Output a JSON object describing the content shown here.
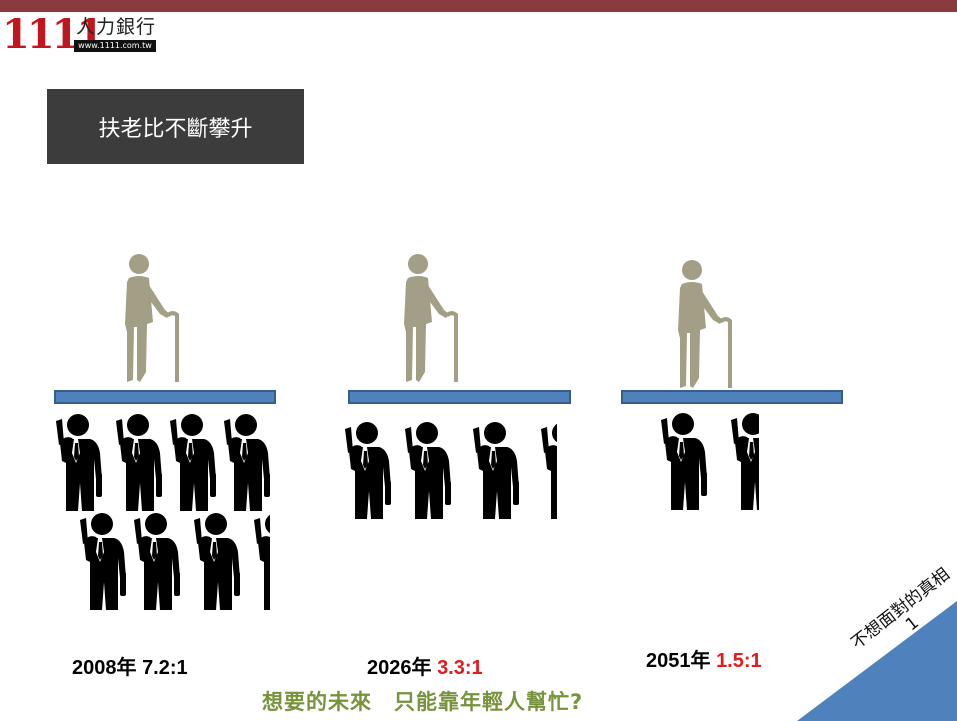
{
  "logo": {
    "number": "1111",
    "name": "人力銀行",
    "url": "www.1111.com.tw"
  },
  "title": "扶老比不斷攀升",
  "groups": [
    {
      "year": "2008年",
      "ratio": "7.2:1",
      "ratio_color": "#000000"
    },
    {
      "year": "2026年",
      "ratio": "3.3:1",
      "ratio_color": "#e21b1b"
    },
    {
      "year": "2051年",
      "ratio": "1.5:1",
      "ratio_color": "#e21b1b"
    }
  ],
  "tagline": "想要的未來　只能靠年輕人幫忙?",
  "corner": {
    "line1": "不想面對的真相",
    "line2": "1"
  },
  "colors": {
    "brand_red": "#c0161d",
    "top_bar": "#8b3a3e",
    "platform": "#4f81bd",
    "elder": "#a39e86",
    "tagline": "#77933c",
    "corner": "#4f81bd"
  },
  "icons": [
    "elderly-person-icon",
    "worker-icon"
  ]
}
